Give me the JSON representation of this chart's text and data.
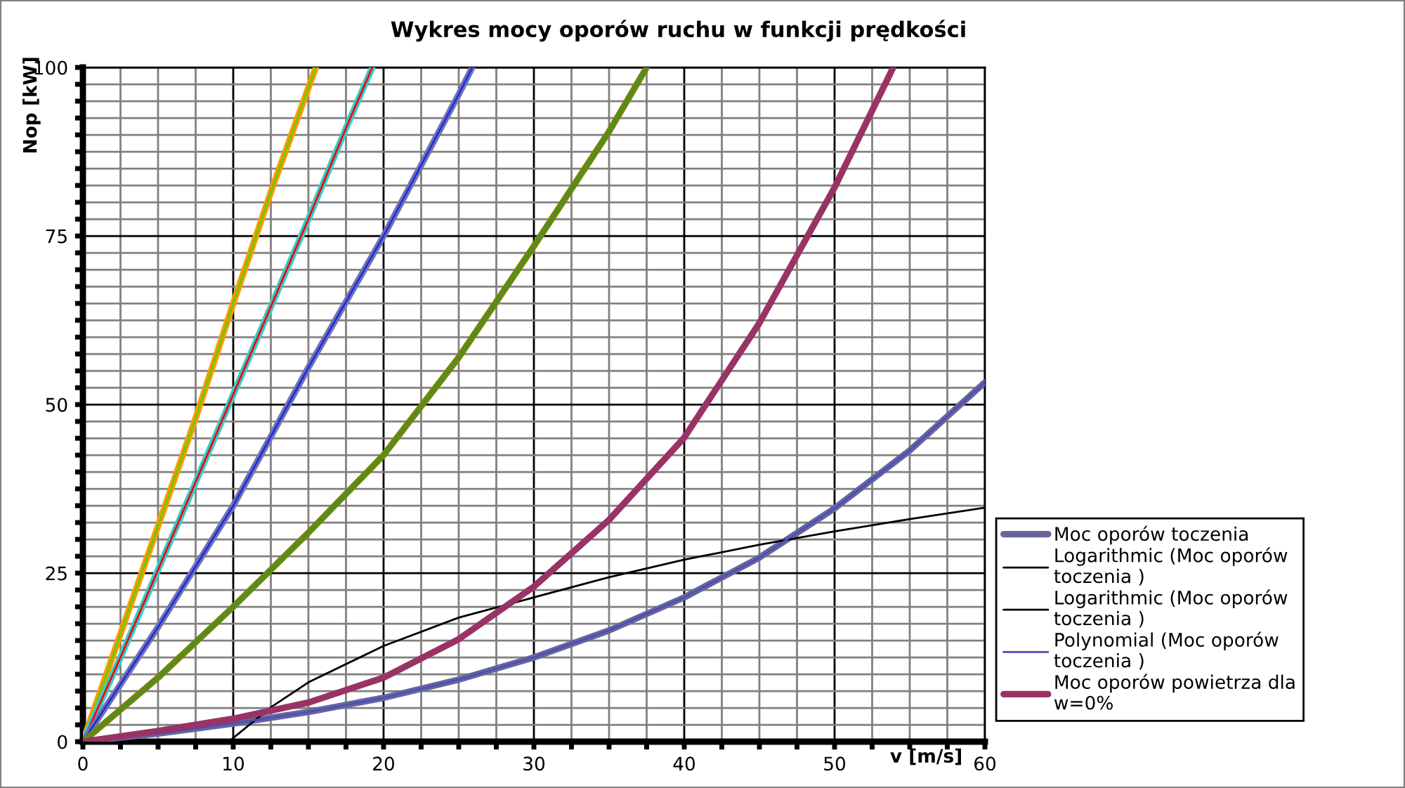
{
  "chart_data": {
    "type": "line",
    "title": "Wykres mocy oporów ruchu w funkcji prędkości",
    "xlabel": "v [m/s]",
    "ylabel": "Nop [kW]",
    "xlim": [
      0,
      60
    ],
    "ylim": [
      0,
      100
    ],
    "xticks": [
      0,
      {
        "value": 2.5,
        "label": null
      },
      {
        "value": 5,
        "label": null
      },
      {
        "value": 7.5,
        "label": null
      },
      10,
      {
        "value": 12.5,
        "label": null
      },
      {
        "value": 15,
        "label": null
      },
      {
        "value": 17.5,
        "label": null
      },
      20,
      {
        "value": 22.5,
        "label": null
      },
      {
        "value": 25,
        "label": null
      },
      {
        "value": 27.5,
        "label": null
      },
      30,
      {
        "value": 32.5,
        "label": null
      },
      {
        "value": 35,
        "label": null
      },
      {
        "value": 37.5,
        "label": null
      },
      40,
      {
        "value": 42.5,
        "label": null
      },
      {
        "value": 45,
        "label": null
      },
      {
        "value": 47.5,
        "label": null
      },
      50,
      {
        "value": 52.5,
        "label": null
      },
      {
        "value": 55,
        "label": null
      },
      {
        "value": 57.5,
        "label": null
      },
      60
    ],
    "yticks": [
      0,
      {
        "value": 2.5,
        "label": null
      },
      {
        "value": 5,
        "label": null
      },
      {
        "value": 7.5,
        "label": null
      },
      {
        "value": 10,
        "label": null
      },
      {
        "value": 12.5,
        "label": null
      },
      {
        "value": 15,
        "label": null
      },
      {
        "value": 17.5,
        "label": null
      },
      {
        "value": 20,
        "label": null
      },
      {
        "value": 22.5,
        "label": null
      },
      25,
      {
        "value": 27.5,
        "label": null
      },
      {
        "value": 30,
        "label": null
      },
      {
        "value": 32.5,
        "label": null
      },
      {
        "value": 35,
        "label": null
      },
      {
        "value": 37.5,
        "label": null
      },
      {
        "value": 40,
        "label": null
      },
      {
        "value": 42.5,
        "label": null
      },
      {
        "value": 45,
        "label": null
      },
      {
        "value": 47.5,
        "label": null
      },
      50,
      {
        "value": 52.5,
        "label": null
      },
      {
        "value": 55,
        "label": null
      },
      {
        "value": 57.5,
        "label": null
      },
      {
        "value": 60,
        "label": null
      },
      {
        "value": 62.5,
        "label": null
      },
      {
        "value": 65,
        "label": null
      },
      {
        "value": 67.5,
        "label": null
      },
      {
        "value": 70,
        "label": null
      },
      {
        "value": 72.5,
        "label": null
      },
      75,
      {
        "value": 77.5,
        "label": null
      },
      {
        "value": 80,
        "label": null
      },
      {
        "value": 82.5,
        "label": null
      },
      {
        "value": 85,
        "label": null
      },
      {
        "value": 87.5,
        "label": null
      },
      {
        "value": 90,
        "label": null
      },
      {
        "value": 92.5,
        "label": null
      },
      {
        "value": 95,
        "label": null
      },
      {
        "value": 97.5,
        "label": null
      },
      100
    ],
    "grid": true,
    "legend": "right",
    "series": [
      {
        "color": "#ff9900",
        "x": [
          0,
          2.5,
          5,
          7.5,
          10,
          12.5,
          15,
          15.5
        ],
        "values": [
          0,
          16,
          32,
          48,
          65,
          81.5,
          97,
          100
        ]
      },
      {
        "color": "#66cc00",
        "x": [
          0,
          2.5,
          5,
          7.5,
          10,
          12.5,
          15,
          15.5
        ],
        "values": [
          0,
          16,
          32,
          48,
          65,
          81.5,
          97,
          100
        ]
      },
      {
        "color": "#33cccc",
        "x": [
          0,
          2.5,
          5,
          7.5,
          10,
          12.5,
          15,
          17.5,
          19.25
        ],
        "values": [
          0,
          12.5,
          25.5,
          38.5,
          51.5,
          64.5,
          77.5,
          91,
          100
        ]
      },
      {
        "color": "#ff0000",
        "x": [
          0,
          2.5,
          5,
          7.5,
          10,
          12.5,
          15,
          17.5,
          19.25
        ],
        "values": [
          0,
          12.5,
          25.5,
          38.5,
          51.5,
          64.5,
          77.5,
          91,
          100
        ]
      },
      {
        "color": "#7373b0",
        "x": [
          0,
          5,
          10,
          15,
          20,
          25,
          25.9
        ],
        "values": [
          0,
          17,
          35,
          55.5,
          75,
          96,
          100
        ]
      },
      {
        "color": "#1f2fe0",
        "x": [
          0,
          5,
          10,
          15,
          20,
          25,
          25.9
        ],
        "values": [
          0,
          17,
          35,
          55.5,
          75,
          96,
          100
        ]
      },
      {
        "color": "#808000",
        "x": [
          0,
          5,
          10,
          15,
          20,
          25,
          30,
          35,
          37.5
        ],
        "values": [
          0,
          9.5,
          20,
          31,
          42.5,
          57,
          73.5,
          90.5,
          100
        ]
      },
      {
        "color": "#339933",
        "x": [
          0,
          5,
          10,
          15,
          20,
          25,
          30,
          35,
          37.5
        ],
        "values": [
          0,
          9.5,
          20,
          31,
          42.5,
          57,
          73.5,
          90.5,
          100
        ]
      },
      {
        "name": "Moc oporów toczenia",
        "color": "#666699",
        "x": [
          0,
          5,
          10,
          15,
          20,
          25,
          30,
          35,
          40,
          45,
          50,
          55,
          60
        ],
        "values": [
          0,
          1.2,
          2.7,
          4.4,
          6.5,
          9.2,
          12.5,
          16.5,
          21.4,
          27.3,
          34.6,
          43.2,
          53.3
        ]
      },
      {
        "name": "Logarithmic (Moc oporów\ntoczenia )",
        "color": "#000000",
        "x": [
          9.7,
          12.5,
          15,
          20,
          25,
          30,
          35,
          40,
          45,
          50,
          55,
          60
        ],
        "values": [
          0,
          5.1,
          8.8,
          14.2,
          18.4,
          21.4,
          24.4,
          27,
          29.2,
          31.2,
          33,
          34.7
        ]
      },
      {
        "name": "Logarithmic (Moc oporów\ntoczenia )",
        "color": "#000000",
        "values": [
          null
        ]
      },
      {
        "name": "Polynomial (Moc oporów\ntoczenia )",
        "color": "#4d4dbb",
        "x": [
          0,
          5,
          10,
          15,
          20,
          25,
          30,
          35,
          40,
          45,
          50,
          55,
          60
        ],
        "values": [
          0,
          1.2,
          2.7,
          4.4,
          6.5,
          9.2,
          12.5,
          16.5,
          21.4,
          27.3,
          34.6,
          43.2,
          53.3
        ]
      },
      {
        "name": "Moc oporów powietrza dla\nw=0%",
        "color": "#993366",
        "x": [
          0,
          5,
          10,
          15,
          20,
          25,
          30,
          35,
          40,
          45,
          50,
          53.9
        ],
        "values": [
          0,
          1.6,
          3.4,
          5.8,
          9.5,
          15.2,
          23,
          32.9,
          45.1,
          62.1,
          82.2,
          100
        ]
      }
    ]
  }
}
